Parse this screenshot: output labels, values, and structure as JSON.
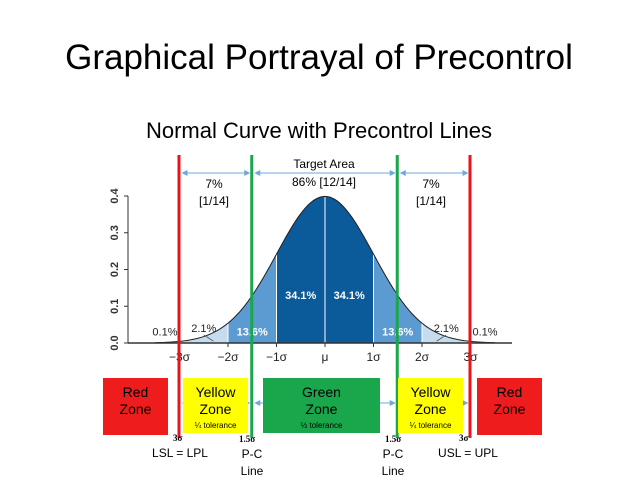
{
  "slide": {
    "title": "Graphical Portrayal of Precontrol",
    "subtitle": "Normal Curve with Precontrol Lines"
  },
  "chart_data": {
    "type": "area",
    "description_of_curve": "standard normal density",
    "x_ticks": [
      "−3σ",
      "−2σ",
      "−1σ",
      "μ",
      "1σ",
      "2σ",
      "3σ"
    ],
    "x_tick_values": [
      -3,
      -2,
      -1,
      0,
      1,
      2,
      3
    ],
    "y_ticks": [
      "0.0",
      "0.1",
      "0.2",
      "0.3",
      "0.4"
    ],
    "y_tick_values": [
      0.0,
      0.1,
      0.2,
      0.3,
      0.4
    ],
    "xlim": [
      -3.5,
      3.5
    ],
    "ylim": [
      0,
      0.4
    ],
    "region_labels": [
      {
        "text": "0.1%",
        "x": -3.3,
        "y": 0.02
      },
      {
        "text": "2.1%",
        "x": -2.5,
        "y": 0.03
      },
      {
        "text": "13.6%",
        "x": -1.5,
        "y": 0.02
      },
      {
        "text": "34.1%",
        "x": -0.5,
        "y": 0.12
      },
      {
        "text": "34.1%",
        "x": 0.5,
        "y": 0.12
      },
      {
        "text": "13.6%",
        "x": 1.5,
        "y": 0.02
      },
      {
        "text": "2.1%",
        "x": 2.5,
        "y": 0.03
      },
      {
        "text": "0.1%",
        "x": 3.3,
        "y": 0.02
      }
    ],
    "colors": {
      "dark": "#0b5a99",
      "light": "#5b9bd1",
      "outer": "#c5dcef",
      "line": "#1f1f1f"
    }
  },
  "precontrol_lines": {
    "lsl_color": "#e8141b",
    "pc_color": "#1aa64a",
    "arrow_color": "#6fa8dc"
  },
  "annotations": {
    "left_pct": "7%",
    "left_frac": "[1/14]",
    "center_title": "Target Area",
    "center_value": "86% [12/14]",
    "right_pct": "7%",
    "right_frac": "[1/14]"
  },
  "zones": {
    "red_left": {
      "line1": "Red",
      "line2": "Zone",
      "color": "#ee1c1c"
    },
    "yellow_left": {
      "line1": "Yellow",
      "line2": "Zone",
      "tol": "¼ tolerance",
      "color": "#ffff00"
    },
    "green": {
      "line1": "Green",
      "line2": "Zone",
      "tol": "½ tolerance",
      "color": "#1aa64a"
    },
    "yellow_right": {
      "line1": "Yellow",
      "line2": "Zone",
      "tol": "¼ tolerance",
      "color": "#ffff00"
    },
    "red_right": {
      "line1": "Red",
      "line2": "Zone",
      "color": "#ee1c1c"
    }
  },
  "bottom_labels": {
    "sigma3_left": "3σ",
    "sigma15_left": "1.5σ",
    "sigma15_right": "1.5σ",
    "sigma3_right": "3σ",
    "lsl": "LSL = LPL",
    "pc_left_1": "P-C",
    "pc_left_2": "Line",
    "pc_right_1": "P-C",
    "pc_right_2": "Line",
    "usl": "USL = UPL"
  }
}
